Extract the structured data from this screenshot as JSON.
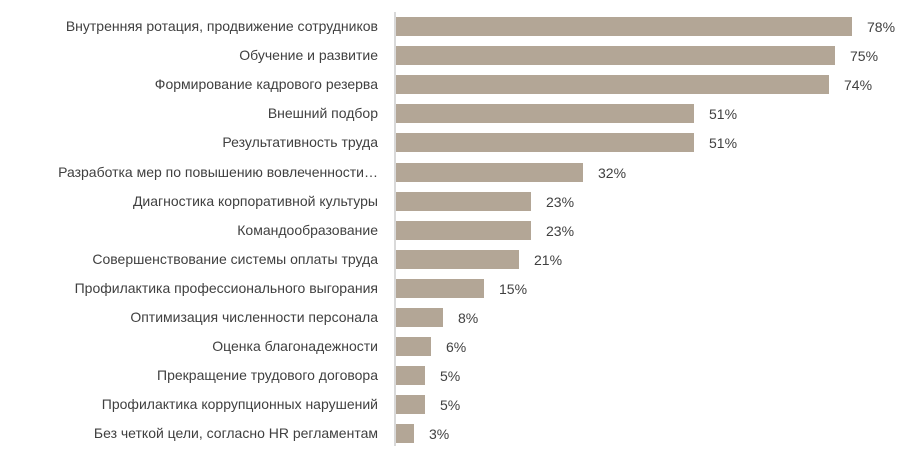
{
  "chart_data": {
    "type": "bar",
    "orientation": "horizontal",
    "title": "",
    "xlabel": "",
    "ylabel": "",
    "xlim": [
      0,
      80
    ],
    "grid": false,
    "legend": null,
    "bar_color": "#b3a696",
    "categories": [
      "Внутренняя ротация, продвижение сотрудников",
      "Обучение и развитие",
      "Формирование кадрового резерва",
      "Внешний подбор",
      "Результативность труда",
      "Разработка мер по повышению вовлеченности…",
      "Диагностика корпоративной культуры",
      "Командообразование",
      "Совершенствование системы оплаты труда",
      "Профилактика профессионального выгорания",
      "Оптимизация численности персонала",
      "Оценка благонадежности",
      "Прекращение трудового договора",
      "Профилактика коррупционных нарушений",
      "Без четкой цели, согласно HR регламентам"
    ],
    "values": [
      78,
      75,
      74,
      51,
      51,
      32,
      23,
      23,
      21,
      15,
      8,
      6,
      5,
      5,
      3
    ],
    "value_labels": [
      "78%",
      "75%",
      "74%",
      "51%",
      "51%",
      "32%",
      "23%",
      "23%",
      "21%",
      "15%",
      "8%",
      "6%",
      "5%",
      "5%",
      "3%"
    ]
  }
}
